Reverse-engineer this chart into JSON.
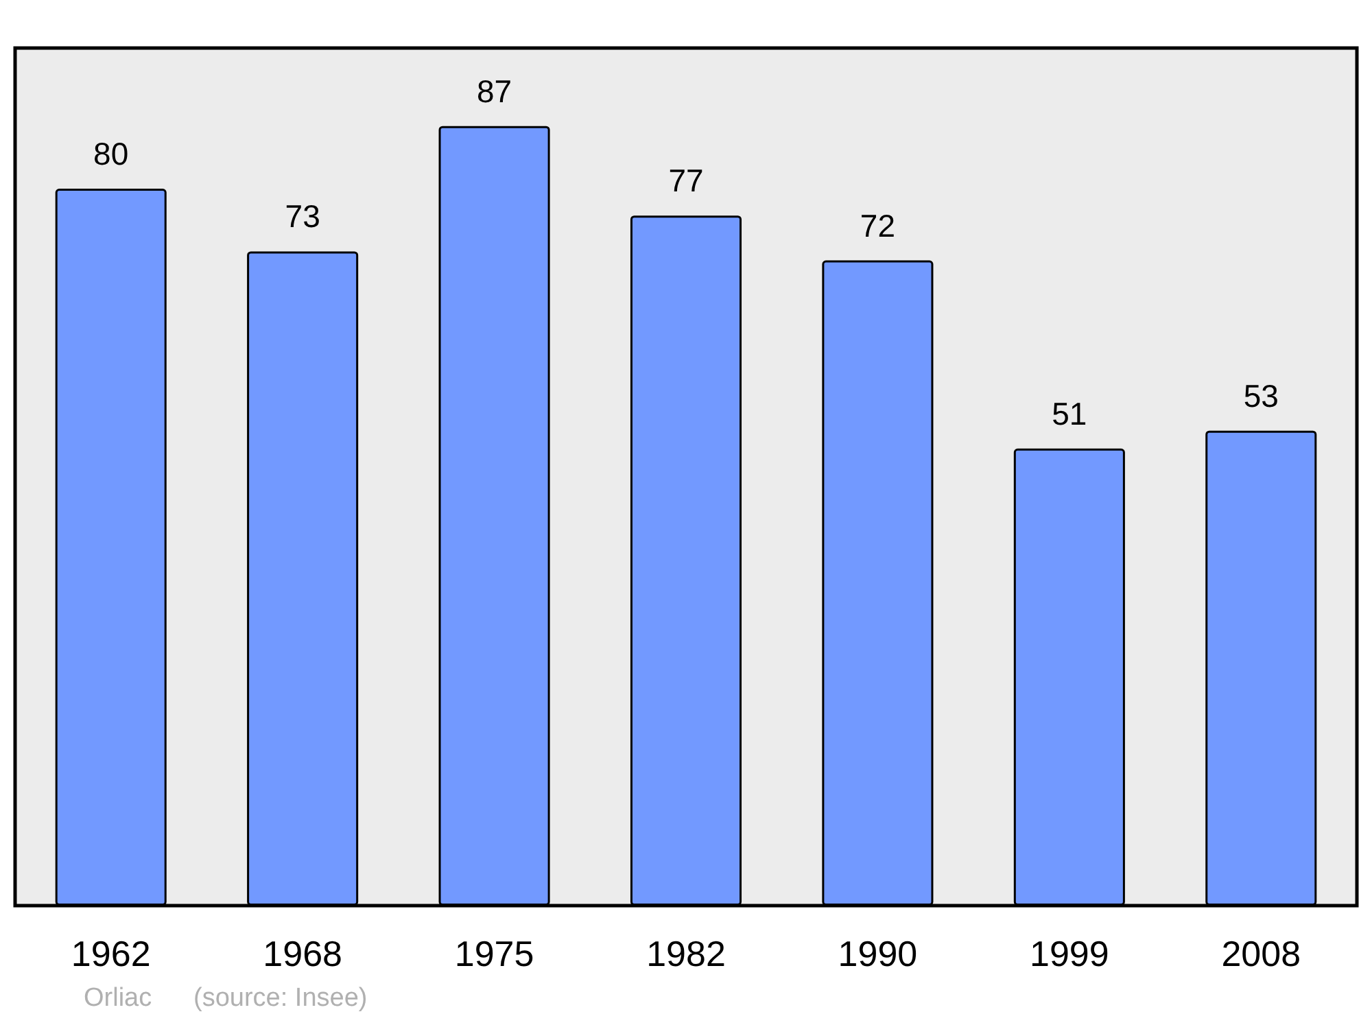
{
  "chart_data": {
    "type": "bar",
    "categories": [
      "1962",
      "1968",
      "1975",
      "1982",
      "1990",
      "1999",
      "2008"
    ],
    "values": [
      80,
      73,
      87,
      77,
      72,
      51,
      53
    ],
    "color": "#7299ff",
    "data_labels": true,
    "annotations": [
      "Orliac",
      "(source: Insee)"
    ]
  }
}
